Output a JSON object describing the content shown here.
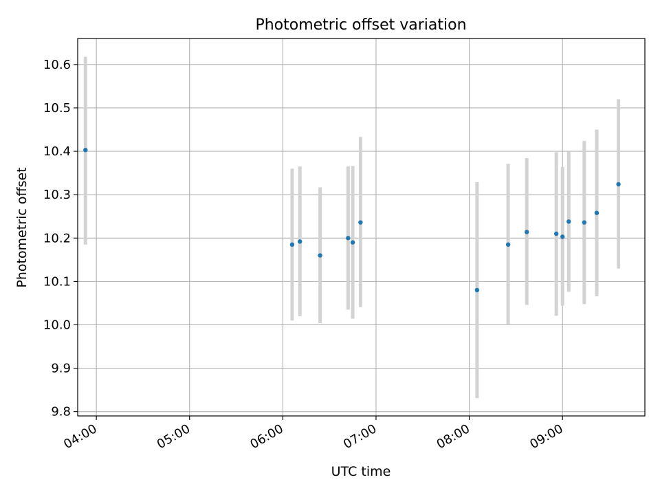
{
  "chart_data": {
    "type": "scatter",
    "title": "Photometric offset variation",
    "xlabel": "UTC time",
    "ylabel": "Photometric offset",
    "xlim": [
      "03:48",
      "09:53"
    ],
    "ylim": [
      9.79,
      10.66
    ],
    "x_ticks": [
      "04:00",
      "05:00",
      "06:00",
      "07:00",
      "08:00",
      "09:00"
    ],
    "y_ticks": [
      "9.8",
      "9.9",
      "10.0",
      "10.1",
      "10.2",
      "10.3",
      "10.4",
      "10.5",
      "10.6"
    ],
    "grid": true,
    "legend": "none",
    "colors": {
      "point": "#1f77b4",
      "errorbar": "#d3d3d3",
      "grid": "#b0b0b0"
    },
    "points": [
      {
        "x": "03:53",
        "y": 10.403,
        "ymin": 10.185,
        "ymax": 10.618
      },
      {
        "x": "06:06",
        "y": 10.185,
        "ymin": 10.01,
        "ymax": 10.36
      },
      {
        "x": "06:11",
        "y": 10.192,
        "ymin": 10.02,
        "ymax": 10.365
      },
      {
        "x": "06:24",
        "y": 10.16,
        "ymin": 10.004,
        "ymax": 10.317
      },
      {
        "x": "06:42",
        "y": 10.2,
        "ymin": 10.035,
        "ymax": 10.365
      },
      {
        "x": "06:45",
        "y": 10.19,
        "ymin": 10.014,
        "ymax": 10.366
      },
      {
        "x": "06:50",
        "y": 10.236,
        "ymin": 10.041,
        "ymax": 10.433
      },
      {
        "x": "08:05",
        "y": 10.08,
        "ymin": 9.831,
        "ymax": 10.329
      },
      {
        "x": "08:25",
        "y": 10.185,
        "ymin": 10.0,
        "ymax": 10.371
      },
      {
        "x": "08:37",
        "y": 10.214,
        "ymin": 10.046,
        "ymax": 10.384
      },
      {
        "x": "08:56",
        "y": 10.21,
        "ymin": 10.021,
        "ymax": 10.398
      },
      {
        "x": "09:00",
        "y": 10.203,
        "ymin": 10.044,
        "ymax": 10.364
      },
      {
        "x": "09:04",
        "y": 10.238,
        "ymin": 10.076,
        "ymax": 10.4
      },
      {
        "x": "09:14",
        "y": 10.236,
        "ymin": 10.048,
        "ymax": 10.424
      },
      {
        "x": "09:22",
        "y": 10.258,
        "ymin": 10.066,
        "ymax": 10.45
      },
      {
        "x": "09:36",
        "y": 10.324,
        "ymin": 10.13,
        "ymax": 10.52
      }
    ]
  }
}
